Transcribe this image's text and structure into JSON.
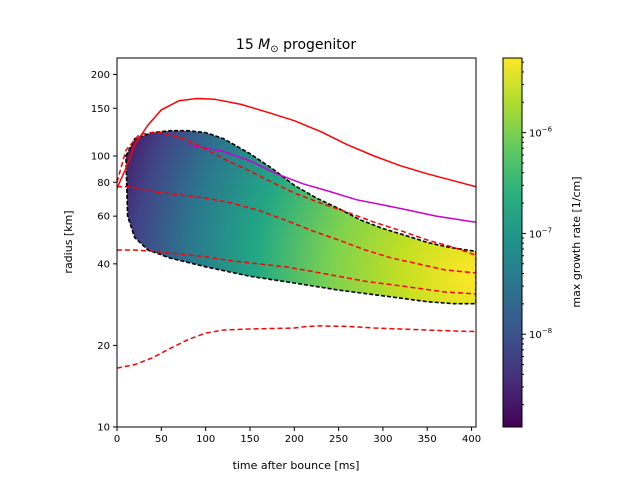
{
  "chart_data": {
    "type": "heatmap",
    "title_prefix": "15 ",
    "title_math": "M",
    "title_sub": "⊙",
    "title_suffix": " progenitor",
    "xlabel": "time after bounce [ms]",
    "ylabel": "radius [km]",
    "xlim": [
      0,
      405
    ],
    "ylim": [
      10,
      230
    ],
    "yscale": "log",
    "xticks": [
      0,
      50,
      100,
      150,
      200,
      250,
      300,
      350,
      400
    ],
    "yticks": [
      10,
      20,
      40,
      60,
      80,
      100,
      150,
      200
    ],
    "grid": false,
    "colorbar": {
      "label": "max growth rate [1/cm]",
      "scale": "log",
      "range": [
        1.2e-09,
        5.5e-06
      ],
      "colormap": "viridis",
      "major_ticks": [
        {
          "value": 1e-08,
          "base": "10",
          "exp": "−8"
        },
        {
          "value": 1e-07,
          "base": "10",
          "exp": "−7"
        },
        {
          "value": 1e-06,
          "base": "10",
          "exp": "−6"
        }
      ]
    },
    "growth_region": {
      "upper_boundary": [
        [
          10,
          100
        ],
        [
          20,
          116
        ],
        [
          40,
          122
        ],
        [
          60,
          124
        ],
        [
          80,
          124
        ],
        [
          100,
          122
        ],
        [
          120,
          116
        ],
        [
          150,
          102
        ],
        [
          175,
          90
        ],
        [
          200,
          78
        ],
        [
          225,
          70
        ],
        [
          250,
          64
        ],
        [
          275,
          58
        ],
        [
          300,
          54
        ],
        [
          325,
          51
        ],
        [
          350,
          48
        ],
        [
          375,
          46
        ],
        [
          405,
          44.5
        ]
      ],
      "lower_boundary": [
        [
          12,
          60
        ],
        [
          20,
          50
        ],
        [
          35,
          45
        ],
        [
          60,
          42
        ],
        [
          100,
          39
        ],
        [
          150,
          36
        ],
        [
          200,
          34
        ],
        [
          250,
          32
        ],
        [
          300,
          30.5
        ],
        [
          350,
          29
        ],
        [
          380,
          28.5
        ],
        [
          405,
          28.5
        ]
      ]
    },
    "series": [
      {
        "color": "#ff0000",
        "style": "solid",
        "points": [
          [
            0,
            76
          ],
          [
            10,
            90
          ],
          [
            20,
            110
          ],
          [
            35,
            130
          ],
          [
            50,
            148
          ],
          [
            70,
            160
          ],
          [
            90,
            163
          ],
          [
            110,
            162
          ],
          [
            140,
            155
          ],
          [
            170,
            145
          ],
          [
            200,
            135
          ],
          [
            230,
            123
          ],
          [
            260,
            110
          ],
          [
            290,
            100
          ],
          [
            320,
            92
          ],
          [
            350,
            86
          ],
          [
            380,
            81
          ],
          [
            405,
            77
          ]
        ]
      },
      {
        "color": "#cc00cc",
        "style": "solid",
        "points": [
          [
            80,
            110
          ],
          [
            120,
            104
          ],
          [
            150,
            96
          ],
          [
            180,
            86
          ],
          [
            210,
            79
          ],
          [
            240,
            74
          ],
          [
            270,
            69
          ],
          [
            300,
            66
          ],
          [
            330,
            63
          ],
          [
            360,
            60
          ],
          [
            405,
            57
          ]
        ]
      },
      {
        "color": "#ff0000",
        "style": "dashed",
        "points": [
          [
            0,
            80
          ],
          [
            10,
            105
          ],
          [
            25,
            120
          ],
          [
            45,
            123
          ],
          [
            60,
            120
          ],
          [
            80,
            114
          ],
          [
            100,
            106
          ],
          [
            125,
            96
          ],
          [
            150,
            88
          ],
          [
            175,
            80
          ],
          [
            200,
            73
          ],
          [
            230,
            67
          ],
          [
            260,
            62
          ],
          [
            290,
            57
          ],
          [
            320,
            53
          ],
          [
            350,
            49
          ],
          [
            380,
            46
          ],
          [
            405,
            43
          ]
        ]
      },
      {
        "color": "#ff0000",
        "style": "dashed",
        "points": [
          [
            0,
            77
          ],
          [
            15,
            77
          ],
          [
            40,
            74
          ],
          [
            70,
            72
          ],
          [
            100,
            70
          ],
          [
            130,
            67
          ],
          [
            160,
            63
          ],
          [
            190,
            58
          ],
          [
            220,
            53
          ],
          [
            250,
            49
          ],
          [
            280,
            45
          ],
          [
            310,
            42
          ],
          [
            340,
            40
          ],
          [
            370,
            38
          ],
          [
            405,
            37
          ]
        ]
      },
      {
        "color": "#ff0000",
        "style": "dashed",
        "points": [
          [
            0,
            45
          ],
          [
            20,
            45
          ],
          [
            40,
            44.5
          ],
          [
            70,
            43.5
          ],
          [
            100,
            42.5
          ],
          [
            130,
            41
          ],
          [
            160,
            40
          ],
          [
            190,
            39
          ],
          [
            220,
            37.5
          ],
          [
            250,
            36
          ],
          [
            280,
            34.5
          ],
          [
            310,
            33.5
          ],
          [
            340,
            32.5
          ],
          [
            370,
            31.5
          ],
          [
            405,
            31
          ]
        ]
      },
      {
        "color": "#ff0000",
        "style": "dashed",
        "points": [
          [
            0,
            16.5
          ],
          [
            20,
            17
          ],
          [
            40,
            18
          ],
          [
            60,
            19.5
          ],
          [
            80,
            21
          ],
          [
            100,
            22.2
          ],
          [
            120,
            22.8
          ],
          [
            150,
            23
          ],
          [
            175,
            23.1
          ],
          [
            200,
            23.2
          ],
          [
            215,
            23.5
          ],
          [
            230,
            23.6
          ],
          [
            260,
            23.5
          ],
          [
            290,
            23.2
          ],
          [
            320,
            23
          ],
          [
            350,
            22.8
          ],
          [
            380,
            22.6
          ],
          [
            405,
            22.5
          ]
        ]
      }
    ]
  }
}
